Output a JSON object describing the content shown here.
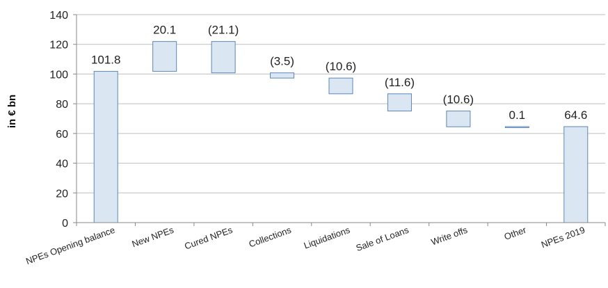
{
  "chart_data": {
    "type": "bar",
    "subtype": "waterfall",
    "ylabel": "in € bn",
    "xlabel": "",
    "ylim": [
      0,
      140
    ],
    "yticks": [
      0,
      20,
      40,
      60,
      80,
      100,
      120,
      140
    ],
    "grid": true,
    "categories": [
      "NPEs Opening balance",
      "New NPEs",
      "Cured NPEs",
      "Collections",
      "Liquidations",
      "Sale of Loans",
      "Write offs",
      "Other",
      "NPEs 2019"
    ],
    "bars": [
      {
        "category": "NPEs Opening balance",
        "start": 0,
        "end": 101.8,
        "label": "101.8"
      },
      {
        "category": "New NPEs",
        "start": 101.8,
        "end": 121.9,
        "label": "20.1"
      },
      {
        "category": "Cured NPEs",
        "start": 121.9,
        "end": 100.8,
        "label": "(21.1)"
      },
      {
        "category": "Collections",
        "start": 100.8,
        "end": 97.3,
        "label": "(3.5)"
      },
      {
        "category": "Liquidations",
        "start": 97.3,
        "end": 86.7,
        "label": "(10.6)"
      },
      {
        "category": "Sale of Loans",
        "start": 86.7,
        "end": 75.1,
        "label": "(11.6)"
      },
      {
        "category": "Write offs",
        "start": 75.1,
        "end": 64.5,
        "label": "(10.6)"
      },
      {
        "category": "Other",
        "start": 64.5,
        "end": 64.6,
        "label": "0.1"
      },
      {
        "category": "NPEs 2019",
        "start": 0,
        "end": 64.6,
        "label": "64.6"
      }
    ],
    "colors": {
      "bar_fill": "#dbe6f3",
      "bar_stroke": "#5a86b8",
      "grid": "#bfbfbf",
      "axis": "#888888"
    }
  }
}
